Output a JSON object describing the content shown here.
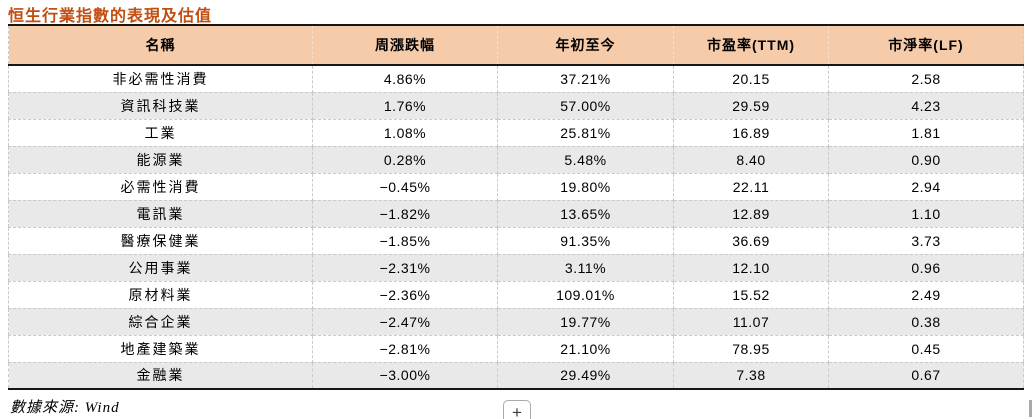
{
  "page": {
    "title": "恒生行業指數的表現及估值",
    "source_note": "數據來源: Wind",
    "expand_button_label": "+"
  },
  "colors": {
    "title_color": "#c14e10",
    "header_bg": "#f6cbaa",
    "alt_row_bg": "#e9e9e9",
    "solid_border": "#161616",
    "dashed_border": "#c9c9c9"
  },
  "table": {
    "columns": [
      "名稱",
      "周漲跌幅",
      "年初至今",
      "市盈率(TTM)",
      "市淨率(LF)"
    ],
    "rows": [
      [
        "非必需性消費",
        "4.86%",
        "37.21%",
        "20.15",
        "2.58"
      ],
      [
        "資訊科技業",
        "1.76%",
        "57.00%",
        "29.59",
        "4.23"
      ],
      [
        "工業",
        "1.08%",
        "25.81%",
        "16.89",
        "1.81"
      ],
      [
        "能源業",
        "0.28%",
        "5.48%",
        "8.40",
        "0.90"
      ],
      [
        "必需性消費",
        "−0.45%",
        "19.80%",
        "22.11",
        "2.94"
      ],
      [
        "電訊業",
        "−1.82%",
        "13.65%",
        "12.89",
        "1.10"
      ],
      [
        "醫療保健業",
        "−1.85%",
        "91.35%",
        "36.69",
        "3.73"
      ],
      [
        "公用事業",
        "−2.31%",
        "3.11%",
        "12.10",
        "0.96"
      ],
      [
        "原材料業",
        "−2.36%",
        "109.01%",
        "15.52",
        "2.49"
      ],
      [
        "綜合企業",
        "−2.47%",
        "19.77%",
        "11.07",
        "0.38"
      ],
      [
        "地產建築業",
        "−2.81%",
        "21.10%",
        "78.95",
        "0.45"
      ],
      [
        "金融業",
        "−3.00%",
        "29.49%",
        "7.38",
        "0.67"
      ]
    ]
  }
}
